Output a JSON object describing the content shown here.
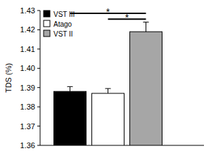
{
  "chart_data": {
    "type": "bar",
    "y_label": "TDS (%)",
    "categories": [
      null
    ],
    "series": [
      {
        "name": "VST III",
        "color": "#000000",
        "values": [
          1.388
        ],
        "errors": [
          0.0025
        ]
      },
      {
        "name": "Atago",
        "color": "#ffffff",
        "values": [
          1.387
        ],
        "errors": [
          0.0025
        ]
      },
      {
        "name": "VST II",
        "color": "#a6a6a6",
        "values": [
          1.419
        ],
        "errors": [
          0.005
        ]
      }
    ],
    "ylim": [
      1.36,
      1.43
    ],
    "yticks": [
      1.36,
      1.37,
      1.38,
      1.39,
      {
        "value": 1.4,
        "label": "1.40"
      },
      1.41,
      1.42,
      1.43
    ],
    "grid": false,
    "legend": "top-left",
    "annotations": [
      {
        "text": "*",
        "from": "VST III",
        "to": "VST II",
        "y": 1.4285
      },
      {
        "text": "*",
        "from": "Atago",
        "to": "VST II",
        "y": 1.4255
      }
    ]
  }
}
